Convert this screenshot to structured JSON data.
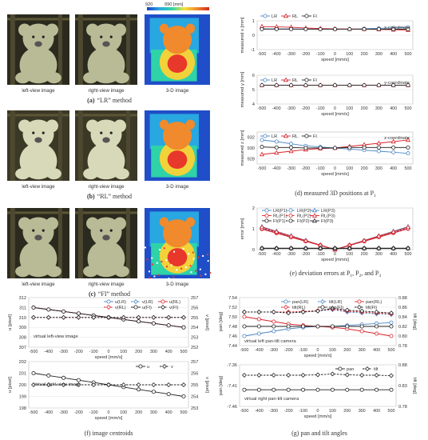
{
  "methods": [
    {
      "letter": "(a)",
      "caption": "“LR” method",
      "left": "left-view image",
      "right": "right-view image",
      "depth": "3-D image",
      "bar_min": "920",
      "bar_max": "990 [mm]"
    },
    {
      "letter": "(b)",
      "caption": "“RL” method",
      "left": "left-view image",
      "right": "right-view image",
      "depth": "3-D image"
    },
    {
      "letter": "(c)",
      "caption": "“FI” method",
      "left": "left-view image",
      "right": "right-view image",
      "depth": "3-D image"
    }
  ],
  "captions": {
    "d": "(d) measured 3D positions at P",
    "d_sub": "1",
    "e": "(e) deviation errors at P",
    "e_tail": ", and P",
    "f": "(f) image centroids",
    "g": "(g) pan and tilt angles"
  },
  "colors": {
    "LR": "#4a86c5",
    "RL": "#d9232a",
    "FI": "#222222",
    "tilt": "#222222"
  },
  "chart_data": [
    {
      "id": "d1",
      "type": "line",
      "title": "x-coordinate",
      "ylabel": "measured x [mm]",
      "xlabel": "speed [mm/s]",
      "x": [
        -500,
        -400,
        -300,
        -200,
        -100,
        0,
        100,
        200,
        300,
        400,
        500
      ],
      "ylim": [
        -1,
        1
      ],
      "yticks": [
        -1,
        0,
        1
      ],
      "series": [
        {
          "name": "LR",
          "color": "#4a86c5",
          "marker": "circle",
          "values": [
            0.45,
            0.44,
            0.44,
            0.43,
            0.42,
            0.42,
            0.42,
            0.45,
            0.48,
            0.5,
            0.55
          ]
        },
        {
          "name": "RL",
          "color": "#d9232a",
          "marker": "triangle",
          "values": [
            0.6,
            0.58,
            0.55,
            0.5,
            0.46,
            0.44,
            0.43,
            0.42,
            0.4,
            0.38,
            0.35
          ]
        },
        {
          "name": "FI",
          "color": "#222222",
          "marker": "circle",
          "values": [
            0.42,
            0.42,
            0.42,
            0.42,
            0.42,
            0.42,
            0.42,
            0.42,
            0.42,
            0.42,
            0.42
          ]
        }
      ]
    },
    {
      "id": "d2",
      "type": "line",
      "title": "y-coordinate",
      "ylabel": "measured y [mm]",
      "xlabel": "speed [mm/s]",
      "x": [
        -500,
        -400,
        -300,
        -200,
        -100,
        0,
        100,
        200,
        300,
        400,
        500
      ],
      "ylim": [
        4,
        6
      ],
      "yticks": [
        4,
        5,
        6
      ],
      "series": [
        {
          "name": "LR",
          "color": "#4a86c5",
          "marker": "circle",
          "values": [
            5.3,
            5.3,
            5.3,
            5.3,
            5.3,
            5.3,
            5.3,
            5.3,
            5.3,
            5.3,
            5.3
          ]
        },
        {
          "name": "RL",
          "color": "#d9232a",
          "marker": "triangle",
          "values": [
            5.3,
            5.3,
            5.3,
            5.3,
            5.3,
            5.3,
            5.3,
            5.3,
            5.3,
            5.3,
            5.3
          ]
        },
        {
          "name": "FI",
          "color": "#222222",
          "marker": "circle",
          "values": [
            5.3,
            5.3,
            5.3,
            5.3,
            5.3,
            5.3,
            5.3,
            5.3,
            5.3,
            5.3,
            5.3
          ]
        }
      ]
    },
    {
      "id": "d3",
      "type": "line",
      "title": "z-coordinate",
      "ylabel": "measured z [mm]",
      "xlabel": "speed [mm/s]",
      "x": [
        -500,
        -400,
        -300,
        -200,
        -100,
        0,
        100,
        200,
        300,
        400,
        500
      ],
      "ylim": [
        927,
        933
      ],
      "yticks": [
        928,
        930,
        932
      ],
      "series": [
        {
          "name": "LR",
          "color": "#4a86c5",
          "marker": "circle",
          "values": [
            931.5,
            931.2,
            930.8,
            930.4,
            930.2,
            930.0,
            929.8,
            929.6,
            929.4,
            929.2,
            929.0
          ]
        },
        {
          "name": "RL",
          "color": "#d9232a",
          "marker": "triangle",
          "values": [
            928.8,
            929.1,
            929.4,
            929.7,
            929.9,
            930.0,
            930.3,
            930.6,
            930.9,
            931.2,
            931.5
          ]
        },
        {
          "name": "FI",
          "color": "#222222",
          "marker": "circle",
          "values": [
            930.2,
            930.1,
            930.1,
            930.0,
            930.0,
            930.0,
            930.1,
            930.1,
            930.1,
            930.1,
            930.1
          ]
        }
      ]
    },
    {
      "id": "e",
      "type": "line",
      "ylabel": "error [mm]",
      "xlabel": "speed [mm/s]",
      "x": [
        -500,
        -400,
        -300,
        -200,
        -100,
        0,
        100,
        200,
        300,
        400,
        500
      ],
      "ylim": [
        0,
        2
      ],
      "yticks": [
        0,
        1,
        2
      ],
      "series": [
        {
          "name": "LR(P1)",
          "color": "#4a86c5",
          "marker": "circle",
          "dash": false,
          "values": [
            1.0,
            0.8,
            0.6,
            0.4,
            0.2,
            0.0,
            0.2,
            0.4,
            0.6,
            0.8,
            1.0
          ]
        },
        {
          "name": "LR(P2)",
          "color": "#4a86c5",
          "marker": "circle",
          "dash": true,
          "values": [
            1.05,
            0.84,
            0.62,
            0.42,
            0.21,
            0.0,
            0.21,
            0.42,
            0.63,
            0.84,
            1.05
          ]
        },
        {
          "name": "LR(P3)",
          "color": "#4a86c5",
          "marker": "triangle",
          "dash": false,
          "values": [
            1.1,
            0.88,
            0.66,
            0.44,
            0.22,
            0.0,
            0.22,
            0.44,
            0.66,
            0.88,
            1.1
          ]
        },
        {
          "name": "RL(P1)",
          "color": "#d9232a",
          "marker": "circle",
          "dash": false,
          "values": [
            0.98,
            0.79,
            0.59,
            0.4,
            0.2,
            0.0,
            0.2,
            0.4,
            0.6,
            0.8,
            1.0
          ]
        },
        {
          "name": "RL(P2)",
          "color": "#d9232a",
          "marker": "circle",
          "dash": true,
          "values": [
            1.02,
            0.82,
            0.61,
            0.41,
            0.21,
            0.0,
            0.21,
            0.41,
            0.62,
            0.82,
            1.02
          ]
        },
        {
          "name": "RL(P3)",
          "color": "#d9232a",
          "marker": "triangle",
          "dash": false,
          "values": [
            1.08,
            0.86,
            0.65,
            0.43,
            0.22,
            0.0,
            0.22,
            0.43,
            0.65,
            0.86,
            1.08
          ]
        },
        {
          "name": "FI(P1)",
          "color": "#222222",
          "marker": "circle",
          "dash": false,
          "values": [
            0.05,
            0.05,
            0.05,
            0.05,
            0.05,
            0.05,
            0.05,
            0.05,
            0.05,
            0.05,
            0.05
          ]
        },
        {
          "name": "FI(P2)",
          "color": "#222222",
          "marker": "circle",
          "dash": true,
          "values": [
            0.06,
            0.06,
            0.06,
            0.06,
            0.06,
            0.06,
            0.06,
            0.06,
            0.06,
            0.06,
            0.06
          ]
        },
        {
          "name": "FI(P3)",
          "color": "#222222",
          "marker": "triangle",
          "dash": false,
          "values": [
            0.07,
            0.07,
            0.07,
            0.07,
            0.07,
            0.07,
            0.07,
            0.07,
            0.07,
            0.07,
            0.07
          ]
        }
      ]
    },
    {
      "id": "f1",
      "type": "line",
      "title": "virtual left-view image",
      "ylabel": "u [pixel]",
      "ylabel2": "v [pixel]",
      "xlabel": "speed [mm/s]",
      "x": [
        -500,
        -400,
        -300,
        -200,
        -100,
        0,
        100,
        200,
        300,
        400,
        500
      ],
      "ylim": [
        307,
        312
      ],
      "yticks": [
        307,
        308,
        309,
        310,
        311,
        312
      ],
      "y2lim": [
        252,
        257
      ],
      "y2ticks": [
        252,
        253,
        254,
        255,
        256,
        257
      ],
      "series": [
        {
          "name": "u(LR)",
          "color": "#4a86c5",
          "marker": "circle",
          "dash": false,
          "axis": "left",
          "values": [
            311.0,
            310.8,
            310.6,
            310.4,
            310.2,
            310.0,
            309.8,
            309.6,
            309.4,
            309.2,
            309.0
          ]
        },
        {
          "name": "v(LR)",
          "color": "#4a86c5",
          "marker": "diamond",
          "dash": true,
          "axis": "right",
          "values": [
            255,
            255,
            255,
            255,
            255,
            255,
            255,
            255,
            255,
            255,
            255
          ]
        },
        {
          "name": "u(RL)",
          "color": "#d9232a",
          "marker": "circle",
          "dash": false,
          "axis": "left",
          "values": [
            311.0,
            310.8,
            310.6,
            310.4,
            310.2,
            310.0,
            309.8,
            309.6,
            309.4,
            309.2,
            309.0
          ]
        },
        {
          "name": "v(RL)",
          "color": "#d9232a",
          "marker": "diamond",
          "dash": true,
          "axis": "right",
          "values": [
            255,
            255,
            255,
            255,
            255,
            255,
            255,
            255,
            255,
            255,
            255
          ]
        },
        {
          "name": "u(FI)",
          "color": "#222222",
          "marker": "circle",
          "dash": false,
          "axis": "left",
          "values": [
            311.0,
            310.8,
            310.6,
            310.4,
            310.2,
            310.0,
            309.8,
            309.6,
            309.4,
            309.2,
            309.0
          ]
        },
        {
          "name": "v(FI)",
          "color": "#222222",
          "marker": "diamond",
          "dash": true,
          "axis": "right",
          "values": [
            255,
            255,
            255,
            255,
            255,
            255,
            255,
            255,
            255,
            255,
            255
          ]
        }
      ]
    },
    {
      "id": "f2",
      "type": "line",
      "title": "virtual right-view image",
      "ylabel": "u [pixel]",
      "ylabel2": "v [pixel]",
      "xlabel": "speed [mm/s]",
      "x": [
        -500,
        -400,
        -300,
        -200,
        -100,
        0,
        100,
        200,
        300,
        400,
        500
      ],
      "ylim": [
        198,
        202
      ],
      "yticks": [
        198,
        199,
        200,
        201,
        202
      ],
      "y2lim": [
        253,
        257
      ],
      "y2ticks": [
        253,
        254,
        255,
        256,
        257
      ],
      "series": [
        {
          "name": "u",
          "color": "#222222",
          "marker": "circle",
          "dash": false,
          "axis": "left",
          "values": [
            201.0,
            200.8,
            200.6,
            200.4,
            200.2,
            200.0,
            199.8,
            199.6,
            199.4,
            199.2,
            199.0
          ]
        },
        {
          "name": "v",
          "color": "#222222",
          "marker": "diamond",
          "dash": true,
          "axis": "right",
          "values": [
            255,
            255,
            255,
            255,
            255,
            255,
            255,
            255,
            255,
            255,
            255
          ]
        }
      ]
    },
    {
      "id": "g1",
      "type": "line",
      "title": "virtual left pan-tilt camera",
      "ylabel": "pan [deg]",
      "ylabel2": "tilt [deg]",
      "xlabel": "speed [mm/s]",
      "x": [
        -500,
        -400,
        -300,
        -200,
        -100,
        0,
        100,
        200,
        300,
        400,
        500
      ],
      "ylim": [
        7.44,
        7.54
      ],
      "yticks": [
        7.44,
        7.46,
        7.48,
        7.5,
        7.52,
        7.54
      ],
      "y2lim": [
        0.78,
        0.88
      ],
      "y2ticks": [
        0.78,
        0.8,
        0.82,
        0.84,
        0.86,
        0.88
      ],
      "series": [
        {
          "name": "pan(LR)",
          "color": "#4a86c5",
          "marker": "circle",
          "dash": false,
          "axis": "left",
          "values": [
            7.46,
            7.465,
            7.47,
            7.475,
            7.478,
            7.48,
            7.48,
            7.482,
            7.484,
            7.486,
            7.488
          ]
        },
        {
          "name": "tilt(LR)",
          "color": "#4a86c5",
          "marker": "diamond",
          "dash": true,
          "axis": "right",
          "values": [
            0.85,
            0.85,
            0.85,
            0.848,
            0.85,
            0.852,
            0.855,
            0.85,
            0.848,
            0.846,
            0.845
          ]
        },
        {
          "name": "pan(RL)",
          "color": "#d9232a",
          "marker": "circle",
          "dash": false,
          "axis": "left",
          "values": [
            7.5,
            7.495,
            7.49,
            7.485,
            7.482,
            7.48,
            7.478,
            7.475,
            7.47,
            7.465,
            7.46
          ]
        },
        {
          "name": "tilt(RL)",
          "color": "#d9232a",
          "marker": "diamond",
          "dash": true,
          "axis": "right",
          "values": [
            0.85,
            0.85,
            0.85,
            0.85,
            0.851,
            0.853,
            0.856,
            0.852,
            0.85,
            0.848,
            0.846
          ]
        },
        {
          "name": "pan(FI)",
          "color": "#222222",
          "marker": "circle",
          "dash": false,
          "axis": "left",
          "values": [
            7.48,
            7.48,
            7.48,
            7.48,
            7.48,
            7.48,
            7.48,
            7.48,
            7.48,
            7.48,
            7.48
          ]
        },
        {
          "name": "tilt(FI)",
          "color": "#222222",
          "marker": "diamond",
          "dash": true,
          "axis": "right",
          "values": [
            0.85,
            0.85,
            0.85,
            0.848,
            0.85,
            0.852,
            0.858,
            0.854,
            0.852,
            0.85,
            0.848
          ]
        }
      ]
    },
    {
      "id": "g2",
      "type": "line",
      "title": "virtual right pan-tilt camera",
      "ylabel": "pan [deg]",
      "ylabel2": "tilt [deg]",
      "xlabel": "speed [mm/s]",
      "x": [
        -500,
        -400,
        -300,
        -200,
        -100,
        0,
        100,
        200,
        300,
        400,
        500
      ],
      "ylim": [
        -7.46,
        -7.36
      ],
      "yticks": [
        -7.46,
        -7.41,
        -7.36
      ],
      "y2lim": [
        0.78,
        0.88
      ],
      "y2ticks": [
        0.78,
        0.83,
        0.88
      ],
      "series": [
        {
          "name": "pan",
          "color": "#222222",
          "marker": "circle",
          "dash": false,
          "axis": "left",
          "values": [
            -7.42,
            -7.42,
            -7.42,
            -7.42,
            -7.42,
            -7.42,
            -7.42,
            -7.42,
            -7.42,
            -7.42,
            -7.42
          ]
        },
        {
          "name": "tilt",
          "color": "#222222",
          "marker": "diamond",
          "dash": true,
          "axis": "right",
          "values": [
            0.855,
            0.855,
            0.855,
            0.855,
            0.855,
            0.856,
            0.858,
            0.856,
            0.855,
            0.855,
            0.854
          ]
        }
      ]
    }
  ]
}
